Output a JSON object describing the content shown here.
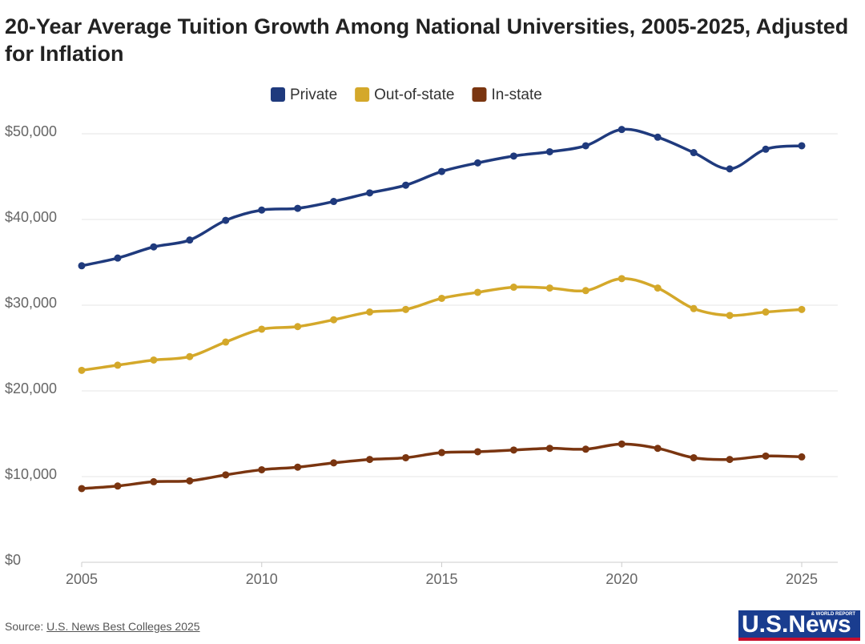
{
  "chart_data": {
    "type": "line",
    "title": "20-Year Average Tuition Growth Among National Universities, 2005-2025, Adjusted for Inflation",
    "x": [
      2005,
      2006,
      2007,
      2008,
      2009,
      2010,
      2011,
      2012,
      2013,
      2014,
      2015,
      2016,
      2017,
      2018,
      2019,
      2020,
      2021,
      2022,
      2023,
      2024,
      2025
    ],
    "series": [
      {
        "name": "Private",
        "color": "#1f3a7d",
        "values": [
          34600,
          35500,
          36800,
          37600,
          39900,
          41100,
          41300,
          42100,
          43100,
          44000,
          45600,
          46600,
          47400,
          47900,
          48600,
          50500,
          49600,
          47800,
          45900,
          48200,
          48600
        ]
      },
      {
        "name": "Out-of-state",
        "color": "#d4a82a",
        "values": [
          22400,
          23000,
          23600,
          24000,
          25700,
          27200,
          27500,
          28300,
          29200,
          29500,
          30800,
          31500,
          32100,
          32000,
          31700,
          33100,
          32000,
          29600,
          28800,
          29200,
          29500
        ]
      },
      {
        "name": "In-state",
        "color": "#7a3510",
        "values": [
          8600,
          8900,
          9400,
          9500,
          10200,
          10800,
          11100,
          11600,
          12000,
          12200,
          12800,
          12900,
          13100,
          13300,
          13200,
          13800,
          13300,
          12200,
          12000,
          12400,
          12300
        ]
      }
    ],
    "xlim": [
      2005,
      2026
    ],
    "xticks": [
      2005,
      2010,
      2015,
      2020,
      2025
    ],
    "ylim": [
      0,
      50000
    ],
    "yticks": [
      {
        "value": 0,
        "label": "$0"
      },
      {
        "value": 10000,
        "label": "$10,000"
      },
      {
        "value": 20000,
        "label": "$20,000"
      },
      {
        "value": 30000,
        "label": "$30,000"
      },
      {
        "value": 40000,
        "label": "$40,000"
      },
      {
        "value": 50000,
        "label": "$50,000"
      }
    ],
    "grid": true,
    "legend": "top",
    "source_prefix": "Source:",
    "source_link": "U.S. News Best Colleges 2025",
    "logo": "U.S.News",
    "logo_sub": "& WORLD REPORT"
  }
}
